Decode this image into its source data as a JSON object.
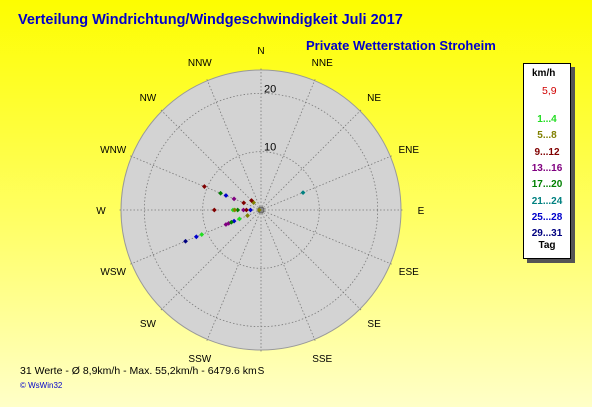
{
  "header": {
    "title": "Verteilung Windrichtung/Windgeschwindigkeit  Juli 2017",
    "subtitle": "Private Wetterstation Stroheim"
  },
  "legend": {
    "unit": "km/h",
    "max_value": "5,9",
    "ranges": [
      {
        "label": "1...4",
        "color": "#22dd22"
      },
      {
        "label": "5...8",
        "color": "#808000"
      },
      {
        "label": "9...12",
        "color": "#800000"
      },
      {
        "label": "13...16",
        "color": "#800080"
      },
      {
        "label": "17...20",
        "color": "#008000"
      },
      {
        "label": "21...24",
        "color": "#008080"
      },
      {
        "label": "25...28",
        "color": "#0000cc"
      },
      {
        "label": "29...31",
        "color": "#000080"
      }
    ],
    "day_label": "Tag"
  },
  "footer": {
    "stats": "31 Werte   -   Ø 8,9km/h  -  Max. 55,2km/h  -   6479.6 km",
    "copyright": "© WsWin32"
  },
  "chart_data": {
    "type": "scatter",
    "projection": "polar",
    "directions": [
      "N",
      "NNE",
      "NE",
      "ENE",
      "E",
      "ESE",
      "SE",
      "SSE",
      "S",
      "SSW",
      "SW",
      "WSW",
      "W",
      "WNW",
      "NW",
      "NNW"
    ],
    "radial_ticks": [
      10,
      20
    ],
    "rmax": 24,
    "points": [
      {
        "dir": 292.5,
        "r": 10.5,
        "color": "#800000"
      },
      {
        "dir": 292.5,
        "r": 7.5,
        "color": "#008000"
      },
      {
        "dir": 292.5,
        "r": 6.5,
        "color": "#0000cc"
      },
      {
        "dir": 292.5,
        "r": 5.0,
        "color": "#800080"
      },
      {
        "dir": 292.5,
        "r": 3.2,
        "color": "#800000"
      },
      {
        "dir": 315,
        "r": 1.8,
        "color": "#808000"
      },
      {
        "dir": 315,
        "r": 2.3,
        "color": "#800000"
      },
      {
        "dir": 67.5,
        "r": 7.8,
        "color": "#008080"
      },
      {
        "dir": 270,
        "r": 8.0,
        "color": "#800000"
      },
      {
        "dir": 270,
        "r": 4.8,
        "color": "#22dd22"
      },
      {
        "dir": 270,
        "r": 4.0,
        "color": "#008000"
      },
      {
        "dir": 270,
        "r": 4.5,
        "color": "#808000"
      },
      {
        "dir": 270,
        "r": 3.0,
        "color": "#800080"
      },
      {
        "dir": 270,
        "r": 2.5,
        "color": "#800000"
      },
      {
        "dir": 270,
        "r": 1.8,
        "color": "#0000cc"
      },
      {
        "dir": 270,
        "r": 0.3,
        "color": "#808000"
      },
      {
        "dir": 247.5,
        "r": 5.0,
        "color": "#0000cc"
      },
      {
        "dir": 247.5,
        "r": 6.0,
        "color": "#800080"
      },
      {
        "dir": 247.5,
        "r": 6.5,
        "color": "#800080"
      },
      {
        "dir": 247.5,
        "r": 5.5,
        "color": "#008000"
      },
      {
        "dir": 247.5,
        "r": 4.0,
        "color": "#22dd22"
      },
      {
        "dir": 247.5,
        "r": 11.0,
        "color": "#22dd22"
      },
      {
        "dir": 247.5,
        "r": 12.0,
        "color": "#0000cc"
      },
      {
        "dir": 247.5,
        "r": 14.0,
        "color": "#000080"
      },
      {
        "dir": 247.5,
        "r": 2.5,
        "color": "#808000"
      }
    ]
  }
}
